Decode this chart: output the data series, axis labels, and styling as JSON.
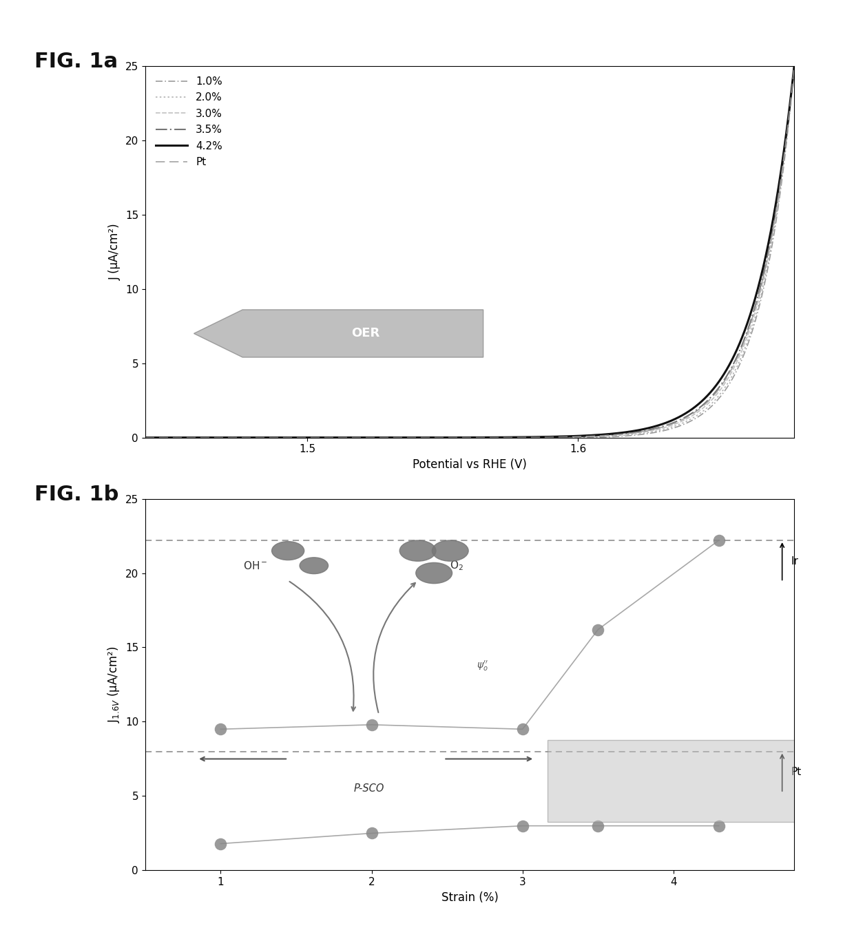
{
  "fig1a": {
    "xlabel": "Potential vs RHE (V)",
    "ylabel": "J (μA/cm²)",
    "xlim": [
      1.44,
      1.68
    ],
    "ylim": [
      0,
      25
    ],
    "xticks": [
      1.5,
      1.6
    ],
    "yticks": [
      0,
      5,
      10,
      15,
      20,
      25
    ],
    "series": [
      {
        "label": "1.0%",
        "onset": 1.605,
        "k": 80,
        "color": "#909090",
        "lw": 1.2,
        "ls_key": "dash_dot",
        "alpha": 0.9
      },
      {
        "label": "2.0%",
        "onset": 1.59,
        "k": 78,
        "color": "#aaaaaa",
        "lw": 1.2,
        "ls_key": "dotted",
        "alpha": 0.9
      },
      {
        "label": "3.0%",
        "onset": 1.575,
        "k": 75,
        "color": "#bbbbbb",
        "lw": 1.2,
        "ls_key": "densedash",
        "alpha": 0.9
      },
      {
        "label": "3.5%",
        "onset": 1.555,
        "k": 72,
        "color": "#666666",
        "lw": 1.5,
        "ls_key": "dash_dot2",
        "alpha": 0.9
      },
      {
        "label": "4.2%",
        "onset": 1.5,
        "k": 68,
        "color": "#111111",
        "lw": 2.2,
        "ls_key": "solid",
        "alpha": 1.0
      },
      {
        "label": "Pt",
        "onset": 1.57,
        "k": 73,
        "color": "#999999",
        "lw": 1.2,
        "ls_key": "longdash",
        "alpha": 0.9
      }
    ]
  },
  "fig1b": {
    "xlabel": "Strain (%)",
    "ylabel": "J$_{1.6V}$ (μA/cm²)",
    "xlim": [
      0.5,
      4.8
    ],
    "ylim": [
      0,
      25
    ],
    "xticks": [
      1,
      2,
      3,
      4
    ],
    "yticks": [
      0,
      5,
      10,
      15,
      20,
      25
    ],
    "upper_x": [
      1.0,
      2.0,
      3.0,
      3.5,
      4.3
    ],
    "upper_y": [
      9.5,
      9.8,
      9.5,
      16.2,
      22.2
    ],
    "lower_x": [
      1.0,
      2.0,
      3.0,
      3.5,
      4.3
    ],
    "lower_y": [
      1.8,
      2.5,
      3.0,
      3.0,
      3.0
    ],
    "marker_color": "#888888",
    "line_color": "#999999",
    "ir_level": 22.2,
    "pt_level": 8.0,
    "ir_label": "Ir",
    "pt_label": "Pt"
  },
  "fig_label_color": "#111111",
  "background_color": "#ffffff",
  "fig_label_fontsize": 22,
  "axis_label_fontsize": 12,
  "tick_fontsize": 11,
  "legend_fontsize": 11
}
